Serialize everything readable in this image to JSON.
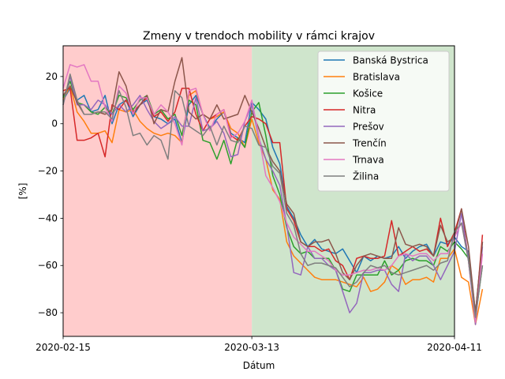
{
  "chart_data": {
    "type": "line",
    "title": "Zmeny v trendoch mobility v rámci krajov",
    "xlabel": "Dátum",
    "ylabel": "[%]",
    "xlim": [
      "2020-02-15",
      "2020-04-11"
    ],
    "ylim": [
      -90,
      33
    ],
    "x_start": "2020-02-15",
    "x_ticks": [
      "2020-02-15",
      "2020-03-13",
      "2020-04-11"
    ],
    "y_ticks": [
      20,
      0,
      -20,
      -40,
      -60,
      -80
    ],
    "y_tick_labels": [
      "20",
      "0",
      "−20",
      "−40",
      "−60",
      "−80"
    ],
    "grid": false,
    "legend_position": "top-right",
    "shaded_regions": [
      {
        "from": "2020-02-15",
        "to": "2020-03-13",
        "color": "#ffcccc"
      },
      {
        "from": "2020-03-13",
        "to": "2020-04-11",
        "color": "#cfe5cc"
      }
    ],
    "series": [
      {
        "name": "Banská Bystrica",
        "color": "#1f77b4",
        "values": [
          10,
          15,
          10,
          12,
          5,
          6,
          12,
          0,
          8,
          10,
          3,
          8,
          10,
          3,
          2,
          0,
          2,
          -8,
          8,
          12,
          4,
          -2,
          2,
          5,
          -4,
          -6,
          -8,
          9,
          6,
          2,
          -10,
          -17,
          -35,
          -40,
          -47,
          -52,
          -49,
          -53,
          -54,
          -55,
          -53,
          -58,
          -63,
          -56,
          -58,
          -56,
          -57,
          -56,
          -52,
          -57,
          -54,
          -52,
          -51,
          -56,
          -50,
          -51,
          -48,
          -52,
          -54,
          -80,
          -50
        ]
      },
      {
        "name": "Bratislava",
        "color": "#ff7f0e",
        "values": [
          10,
          16,
          5,
          1,
          -4,
          -4,
          -3,
          -8,
          6,
          5,
          6,
          1,
          -2,
          -4,
          -5,
          -4,
          -5,
          -8,
          12,
          14,
          4,
          2,
          3,
          5,
          -2,
          -4,
          -10,
          2,
          -8,
          -15,
          -28,
          -32,
          -50,
          -56,
          -59,
          -62,
          -65,
          -66,
          -66,
          -66,
          -67,
          -68,
          -69,
          -65,
          -71,
          -70,
          -67,
          -60,
          -62,
          -68,
          -66,
          -66,
          -65,
          -67,
          -57,
          -57,
          -53,
          -65,
          -67,
          -85,
          -70
        ]
      },
      {
        "name": "Košice",
        "color": "#2ca02c",
        "values": [
          11,
          18,
          9,
          8,
          5,
          4,
          7,
          4,
          12,
          11,
          6,
          10,
          12,
          4,
          6,
          2,
          4,
          -5,
          10,
          8,
          -7,
          -8,
          -15,
          -7,
          -17,
          -6,
          -10,
          5,
          9,
          -5,
          -22,
          -30,
          -44,
          -52,
          -55,
          -54,
          -57,
          -57,
          -57,
          -62,
          -70,
          -71,
          -64,
          -64,
          -64,
          -64,
          -58,
          -64,
          -62,
          -58,
          -57,
          -58,
          -58,
          -60,
          -52,
          -54,
          -50,
          -53,
          -57,
          -82,
          -60
        ]
      },
      {
        "name": "Nitra",
        "color": "#d62728",
        "values": [
          14,
          15,
          -7,
          -7,
          -6,
          -4,
          -14,
          8,
          6,
          10,
          5,
          8,
          11,
          3,
          5,
          1,
          5,
          15,
          15,
          4,
          -3,
          2,
          4,
          6,
          -5,
          -7,
          -1,
          3,
          2,
          0,
          -8,
          -8,
          -36,
          -41,
          -50,
          -52,
          -52,
          -54,
          -53,
          -58,
          -60,
          -66,
          -57,
          -56,
          -57,
          -57,
          -56,
          -41,
          -56,
          -54,
          -52,
          -54,
          -53,
          -56,
          -40,
          -52,
          -46,
          -36,
          -58,
          -82,
          -47
        ]
      },
      {
        "name": "Prešov",
        "color": "#9467bd",
        "values": [
          8,
          20,
          8,
          8,
          6,
          10,
          8,
          4,
          8,
          5,
          8,
          12,
          6,
          1,
          -2,
          0,
          3,
          -1,
          -1,
          11,
          -3,
          -2,
          1,
          -4,
          -14,
          -13,
          1,
          8,
          -6,
          -15,
          -20,
          -26,
          -43,
          -63,
          -64,
          -52,
          -57,
          -57,
          -60,
          -62,
          -71,
          -80,
          -76,
          -63,
          -63,
          -62,
          -62,
          -68,
          -71,
          -55,
          -58,
          -56,
          -56,
          -60,
          -66,
          -60,
          -54,
          -38,
          -58,
          -85,
          -52
        ]
      },
      {
        "name": "Trenčín",
        "color": "#8c564b",
        "values": [
          12,
          16,
          9,
          4,
          4,
          5,
          4,
          6,
          22,
          16,
          4,
          8,
          12,
          0,
          6,
          5,
          18,
          28,
          5,
          2,
          4,
          2,
          8,
          2,
          3,
          4,
          12,
          5,
          -2,
          -10,
          -16,
          -20,
          -34,
          -38,
          -50,
          -52,
          -50,
          -50,
          -49,
          -55,
          -63,
          -66,
          -60,
          -56,
          -55,
          -56,
          -57,
          -57,
          -44,
          -51,
          -52,
          -51,
          -52,
          -56,
          -43,
          -50,
          -48,
          -36,
          -52,
          -80,
          -50
        ]
      },
      {
        "name": "Trnava",
        "color": "#e377c2",
        "values": [
          15,
          25,
          24,
          25,
          18,
          18,
          7,
          1,
          16,
          13,
          4,
          11,
          11,
          4,
          8,
          5,
          0,
          -9,
          14,
          15,
          4,
          -3,
          4,
          6,
          -6,
          -4,
          1,
          10,
          -5,
          -22,
          -27,
          -33,
          -42,
          -48,
          -51,
          -54,
          -54,
          -56,
          -58,
          -62,
          -64,
          -64,
          -63,
          -62,
          -62,
          -61,
          -62,
          -60,
          -56,
          -55,
          -56,
          -55,
          -55,
          -58,
          -55,
          -55,
          -48,
          -42,
          -58,
          -84,
          -55
        ]
      },
      {
        "name": "Žilina",
        "color": "#7f7f7f",
        "values": [
          8,
          21,
          10,
          4,
          4,
          5,
          5,
          2,
          14,
          7,
          -5,
          -4,
          -9,
          -5,
          -7,
          -15,
          14,
          11,
          -1,
          -3,
          -5,
          -1,
          -9,
          -1,
          -7,
          -8,
          -1,
          -2,
          -9,
          -10,
          -18,
          -21,
          -38,
          -43,
          -55,
          -60,
          -59,
          -59,
          -60,
          -61,
          -65,
          -69,
          -67,
          -63,
          -60,
          -61,
          -60,
          -63,
          -64,
          -63,
          -62,
          -61,
          -60,
          -62,
          -59,
          -58,
          -46,
          -42,
          -58,
          -82,
          -60
        ]
      }
    ]
  }
}
